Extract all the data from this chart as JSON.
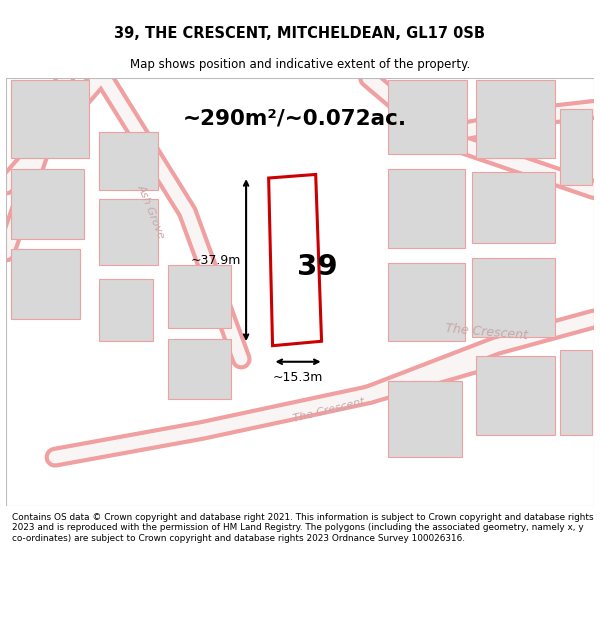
{
  "title": "39, THE CRESCENT, MITCHELDEAN, GL17 0SB",
  "subtitle": "Map shows position and indicative extent of the property.",
  "area_text": "~290m²/~0.072ac.",
  "property_number": "39",
  "dim_height": "~37.9m",
  "dim_width": "~15.3m",
  "road_label_1": "The Crescent",
  "road_label_2": "Ash Grove",
  "road_label_3": "The Crescent",
  "footer": "Contains OS data © Crown copyright and database right 2021. This information is subject to Crown copyright and database rights 2023 and is reproduced with the permission of HM Land Registry. The polygons (including the associated geometry, namely x, y co-ordinates) are subject to Crown copyright and database rights 2023 Ordnance Survey 100026316.",
  "bg_color": "#ffffff",
  "map_bg": "#f5f5f5",
  "building_fill": "#d8d8d8",
  "building_edge": "#f0a0a0",
  "road_color": "#f0a0a0",
  "plot_edge": "#cc0000",
  "plot_fill": "#ffffff",
  "dim_color": "#000000",
  "text_color": "#000000",
  "road_text_color": "#c8a8a8"
}
